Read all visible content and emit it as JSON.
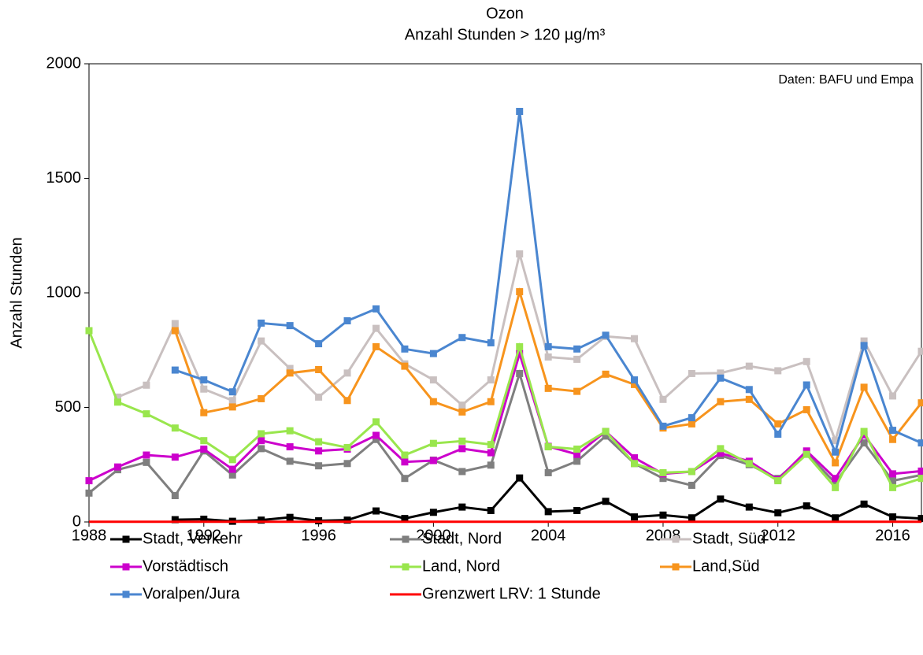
{
  "chart_data": {
    "type": "line",
    "title": "Ozon",
    "subtitle": "Anzahl Stunden > 120 µg/m³",
    "ylabel": "Anzahl Stunden",
    "annotation": "Daten: BAFU und Empa",
    "x": [
      1988,
      1989,
      1990,
      1991,
      1992,
      1993,
      1994,
      1995,
      1996,
      1997,
      1998,
      1999,
      2000,
      2001,
      2002,
      2003,
      2004,
      2005,
      2006,
      2007,
      2008,
      2009,
      2010,
      2011,
      2012,
      2013,
      2014,
      2015,
      2016,
      2017
    ],
    "xlim": [
      1988,
      2017
    ],
    "xticks": [
      1988,
      1992,
      1996,
      2000,
      2004,
      2008,
      2012,
      2016
    ],
    "ylim": [
      0,
      2000
    ],
    "yticks": [
      0,
      500,
      1000,
      1500,
      2000
    ],
    "series": [
      {
        "name": "Stadt, Verkehr",
        "color": "#000000",
        "values": [
          null,
          null,
          null,
          10,
          12,
          3,
          8,
          20,
          5,
          8,
          48,
          15,
          42,
          65,
          50,
          192,
          45,
          50,
          90,
          22,
          30,
          18,
          100,
          65,
          40,
          70,
          18,
          78,
          22,
          15
        ]
      },
      {
        "name": "Stadt, Nord",
        "color": "#7f7f7f",
        "values": [
          126,
          228,
          260,
          115,
          310,
          205,
          320,
          265,
          245,
          255,
          360,
          190,
          270,
          220,
          248,
          648,
          215,
          265,
          375,
          255,
          190,
          160,
          290,
          250,
          190,
          300,
          170,
          345,
          180,
          205
        ]
      },
      {
        "name": "Stadt, Süd",
        "color": "#c9c0c0",
        "values": [
          null,
          545,
          597,
          866,
          580,
          530,
          790,
          670,
          545,
          650,
          845,
          690,
          620,
          510,
          620,
          1170,
          720,
          710,
          810,
          800,
          535,
          648,
          650,
          680,
          660,
          700,
          355,
          790,
          550,
          745
        ]
      },
      {
        "name": "Vorstädtisch",
        "color": "#cc00cc",
        "values": [
          180,
          240,
          292,
          283,
          318,
          230,
          355,
          328,
          310,
          318,
          378,
          262,
          268,
          320,
          302,
          735,
          330,
          295,
          395,
          280,
          210,
          220,
          300,
          265,
          185,
          310,
          190,
          380,
          210,
          222
        ]
      },
      {
        "name": "Land, Nord",
        "color": "#99e64d",
        "values": [
          835,
          523,
          472,
          410,
          355,
          272,
          385,
          398,
          350,
          325,
          437,
          292,
          343,
          353,
          338,
          765,
          328,
          318,
          395,
          255,
          215,
          220,
          320,
          255,
          180,
          295,
          150,
          395,
          150,
          190
        ]
      },
      {
        "name": "Land,Süd",
        "color": "#f7941d",
        "values": [
          null,
          null,
          null,
          835,
          477,
          502,
          538,
          650,
          665,
          530,
          765,
          680,
          525,
          480,
          525,
          1005,
          583,
          570,
          645,
          600,
          410,
          428,
          525,
          535,
          428,
          490,
          258,
          588,
          360,
          520
        ]
      },
      {
        "name": "Voralpen/Jura",
        "color": "#4a86d0",
        "values": [
          null,
          null,
          null,
          663,
          620,
          568,
          868,
          857,
          778,
          878,
          930,
          755,
          735,
          805,
          782,
          1792,
          765,
          755,
          815,
          620,
          418,
          455,
          628,
          578,
          383,
          598,
          305,
          770,
          400,
          345
        ]
      },
      {
        "name": "Grenzwert LRV: 1 Stunde",
        "color": "#ff0000",
        "marker": false,
        "values": [
          1,
          1,
          1,
          1,
          1,
          1,
          1,
          1,
          1,
          1,
          1,
          1,
          1,
          1,
          1,
          1,
          1,
          1,
          1,
          1,
          1,
          1,
          1,
          1,
          1,
          1,
          1,
          1,
          1,
          1
        ]
      }
    ]
  }
}
